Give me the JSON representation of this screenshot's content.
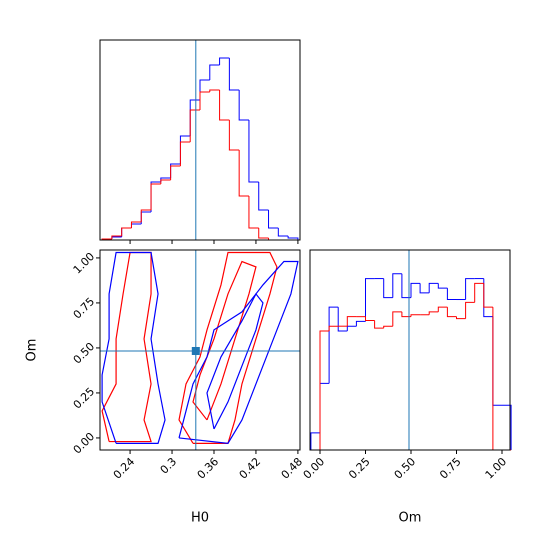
{
  "chart_data": [
    {
      "type": "histogram",
      "bins": [
        0.2,
        0.214,
        0.228,
        0.242,
        0.256,
        0.27,
        0.284,
        0.298,
        0.312,
        0.326,
        0.34,
        0.354,
        0.368,
        0.382,
        0.396,
        0.41,
        0.424,
        0.438,
        0.452,
        0.466,
        0.48
      ],
      "series": [
        {
          "color": "blue",
          "values": [
            1,
            3,
            12,
            16,
            28,
            58,
            62,
            76,
            104,
            140,
            160,
            175,
            182,
            150,
            120,
            58,
            30,
            12,
            4,
            2
          ]
        },
        {
          "color": "red",
          "values": [
            1,
            4,
            12,
            18,
            30,
            56,
            60,
            74,
            98,
            130,
            148,
            150,
            120,
            90,
            44,
            12,
            2,
            0,
            0,
            0
          ]
        }
      ],
      "xlim": [
        0.197,
        0.483
      ],
      "ylim": [
        0,
        200
      ],
      "xticks": [
        0.24,
        0.3,
        0.36,
        0.42,
        0.48
      ],
      "truth": 0.334,
      "truth_color": "#1f77b4"
    },
    {
      "type": "contour",
      "xlabel": "H0",
      "ylabel": "Om",
      "xlim": [
        0.197,
        0.483
      ],
      "ylim": [
        -0.067,
        1.044
      ],
      "xticks": [
        0.24,
        0.3,
        0.36,
        0.42,
        0.48
      ],
      "yticks": [
        {
          "value": 0,
          "label": "0.00"
        },
        {
          "value": 0.25,
          "label": "0.25"
        },
        {
          "value": 0.5,
          "label": "0.50"
        },
        {
          "value": 0.75,
          "label": "0.75"
        },
        {
          "value": 1,
          "label": "1.00"
        }
      ],
      "series": [
        {
          "color": "red",
          "x": [
            0.33,
            0.38,
            0.39,
            0.4,
            0.42,
            0.44,
            0.45,
            0.44,
            0.38,
            0.37,
            0.35,
            0.34,
            0.32,
            0.31,
            0.33
          ],
          "y": [
            -0.03,
            -0.03,
            0.1,
            0.3,
            0.55,
            0.8,
            0.95,
            1.03,
            1.03,
            0.85,
            0.6,
            0.45,
            0.3,
            0.1,
            -0.03
          ]
        },
        {
          "color": "red",
          "x": [
            0.35,
            0.37,
            0.39,
            0.41,
            0.42,
            0.4,
            0.38,
            0.36,
            0.34,
            0.33,
            0.35
          ],
          "y": [
            0.1,
            0.3,
            0.55,
            0.8,
            0.95,
            0.98,
            0.8,
            0.55,
            0.35,
            0.2,
            0.1
          ]
        },
        {
          "color": "red",
          "x": [
            0.21,
            0.27,
            0.26,
            0.27,
            0.26,
            0.27,
            0.27,
            0.24,
            0.23,
            0.22,
            0.22,
            0.2,
            0.21
          ],
          "y": [
            -0.02,
            -0.02,
            0.1,
            0.3,
            0.55,
            0.8,
            1.03,
            1.03,
            0.8,
            0.55,
            0.3,
            0.15,
            -0.02
          ]
        },
        {
          "color": "blue",
          "x": [
            0.31,
            0.38,
            0.4,
            0.42,
            0.44,
            0.47,
            0.48,
            0.46,
            0.43,
            0.4,
            0.38,
            0.36,
            0.35,
            0.33,
            0.32,
            0.31
          ],
          "y": [
            0.0,
            -0.03,
            0.1,
            0.3,
            0.5,
            0.8,
            0.98,
            0.98,
            0.85,
            0.7,
            0.65,
            0.6,
            0.45,
            0.3,
            0.15,
            0.0
          ]
        },
        {
          "color": "blue",
          "x": [
            0.36,
            0.38,
            0.4,
            0.42,
            0.43,
            0.42,
            0.4,
            0.37,
            0.35,
            0.36
          ],
          "y": [
            0.05,
            0.2,
            0.4,
            0.6,
            0.75,
            0.8,
            0.65,
            0.45,
            0.25,
            0.05
          ]
        },
        {
          "color": "blue",
          "x": [
            0.22,
            0.28,
            0.29,
            0.28,
            0.27,
            0.28,
            0.27,
            0.22,
            0.21,
            0.21,
            0.2,
            0.2,
            0.22
          ],
          "y": [
            -0.03,
            -0.03,
            0.1,
            0.3,
            0.55,
            0.8,
            1.03,
            1.03,
            0.8,
            0.55,
            0.35,
            0.2,
            -0.03
          ]
        }
      ],
      "truths": [
        0.334,
        0.483
      ],
      "truth_color": "#1f77b4"
    },
    {
      "type": "histogram",
      "xlabel": "Om",
      "bins": [
        -0.05,
        0.0,
        0.05,
        0.1,
        0.15,
        0.2,
        0.25,
        0.3,
        0.35,
        0.4,
        0.45,
        0.5,
        0.55,
        0.6,
        0.65,
        0.7,
        0.75,
        0.8,
        0.85,
        0.9,
        0.95,
        1.0,
        1.05
      ],
      "series": [
        {
          "color": "blue",
          "values": [
            18,
            70,
            150,
            125,
            130,
            135,
            180,
            180,
            160,
            185,
            160,
            175,
            165,
            175,
            170,
            158,
            158,
            180,
            180,
            140,
            47,
            47
          ]
        },
        {
          "color": "red",
          "values": [
            0,
            125,
            130,
            130,
            140,
            140,
            136,
            128,
            130,
            145,
            140,
            142,
            142,
            145,
            150,
            140,
            138,
            155,
            175,
            150,
            0,
            0
          ]
        }
      ],
      "xlim": [
        -0.055,
        1.044
      ],
      "ylim": [
        0,
        210
      ],
      "xticks": [
        {
          "value": 0,
          "label": "0.00"
        },
        {
          "value": 0.25,
          "label": "0.25"
        },
        {
          "value": 0.5,
          "label": "0.50"
        },
        {
          "value": 0.75,
          "label": "0.75"
        },
        {
          "value": 1,
          "label": "1.00"
        }
      ],
      "truth": 0.489,
      "truth_color": "#1f77b4"
    }
  ]
}
